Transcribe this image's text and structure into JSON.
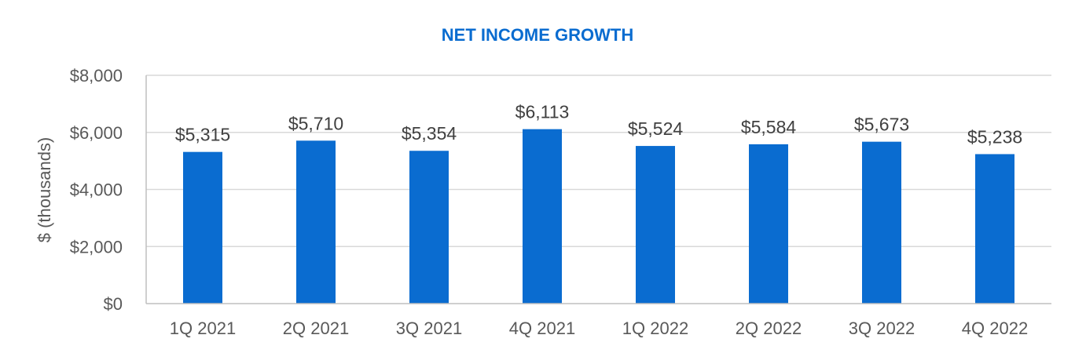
{
  "chart_data": {
    "type": "bar",
    "title": "NET INCOME GROWTH",
    "xlabel": "",
    "ylabel": "$ (thousands)",
    "categories": [
      "1Q 2021",
      "2Q 2021",
      "3Q 2021",
      "4Q 2021",
      "1Q 2022",
      "2Q 2022",
      "3Q 2022",
      "4Q 2022"
    ],
    "values": [
      5315,
      5710,
      5354,
      6113,
      5524,
      5584,
      5673,
      5238
    ],
    "data_labels": [
      "$5,315",
      "$5,710",
      "$5,354",
      "$6,113",
      "$5,524",
      "$5,584",
      "$5,673",
      "$5,238"
    ],
    "y_ticks": [
      0,
      2000,
      4000,
      6000,
      8000
    ],
    "y_tick_labels": [
      "$0",
      "$2,000",
      "$4,000",
      "$6,000",
      "$8,000"
    ],
    "ylim": [
      0,
      8000
    ],
    "grid": true,
    "legend": "none",
    "colors": {
      "bar": "#0a6cd0",
      "title": "#0a6cd0",
      "grid": "#d9d9d9",
      "axis": "#bfbfbf"
    }
  }
}
